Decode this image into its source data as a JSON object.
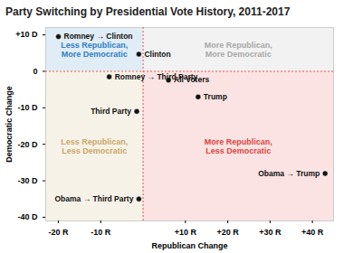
{
  "chart_data": {
    "type": "scatter",
    "title": "Party Switching by Presidential Vote History, 2011-2017",
    "x_label": "Republican Change",
    "y_label": "Democratic Change",
    "color": "#111111",
    "points": [
      {
        "label": "Romney → Clinton",
        "x": -20,
        "y": 9.5
      },
      {
        "label": "Clinton",
        "x": -1,
        "y": 4.7
      },
      {
        "label": "All Voters",
        "x": 6,
        "y": -2.4
      },
      {
        "label": "Trump",
        "x": 13,
        "y": -7
      },
      {
        "label": "Romney → Third Party",
        "x": -8,
        "y": -1.5
      },
      {
        "label": "Third Party",
        "x": -1.5,
        "y": -11
      },
      {
        "label": "Obama → Trump",
        "x": 43,
        "y": -28
      },
      {
        "label": "Obama → Third Party",
        "x": -1,
        "y": -35
      }
    ],
    "xlim": [
      -23,
      45
    ],
    "ylim": [
      -41,
      12
    ],
    "xticks": [
      {
        "value": -20,
        "label": "-20 R"
      },
      {
        "value": -10,
        "label": "-10 R"
      },
      {
        "value": 10,
        "label": "+10 R"
      },
      {
        "value": 20,
        "label": "+20 R"
      },
      {
        "value": 30,
        "label": "+30 R"
      },
      {
        "value": 40,
        "label": "+40 R"
      }
    ],
    "yticks": [
      {
        "value": 10,
        "label": "+10 D"
      },
      0,
      {
        "value": -10,
        "label": "-10 D"
      },
      {
        "value": -20,
        "label": "-20 D"
      },
      {
        "value": -30,
        "label": "-30 D"
      },
      {
        "value": -40,
        "label": "-40 D"
      }
    ],
    "reference_lines": {
      "x": 0,
      "y": 0,
      "color": "#e8524a"
    },
    "quadrants": [
      {
        "label": [
          "Less Republican,",
          "More Democratic"
        ],
        "color": "#2f80c4"
      },
      {
        "label": [
          "More Republican,",
          "More Democratic"
        ],
        "color": "#a9a9a9"
      },
      {
        "label": [
          "Less Republican,",
          "Less Democratic"
        ],
        "color": "#c9a865"
      },
      {
        "label": [
          "More Republican,",
          "Less Democratic"
        ],
        "color": "#e0433d"
      }
    ]
  }
}
